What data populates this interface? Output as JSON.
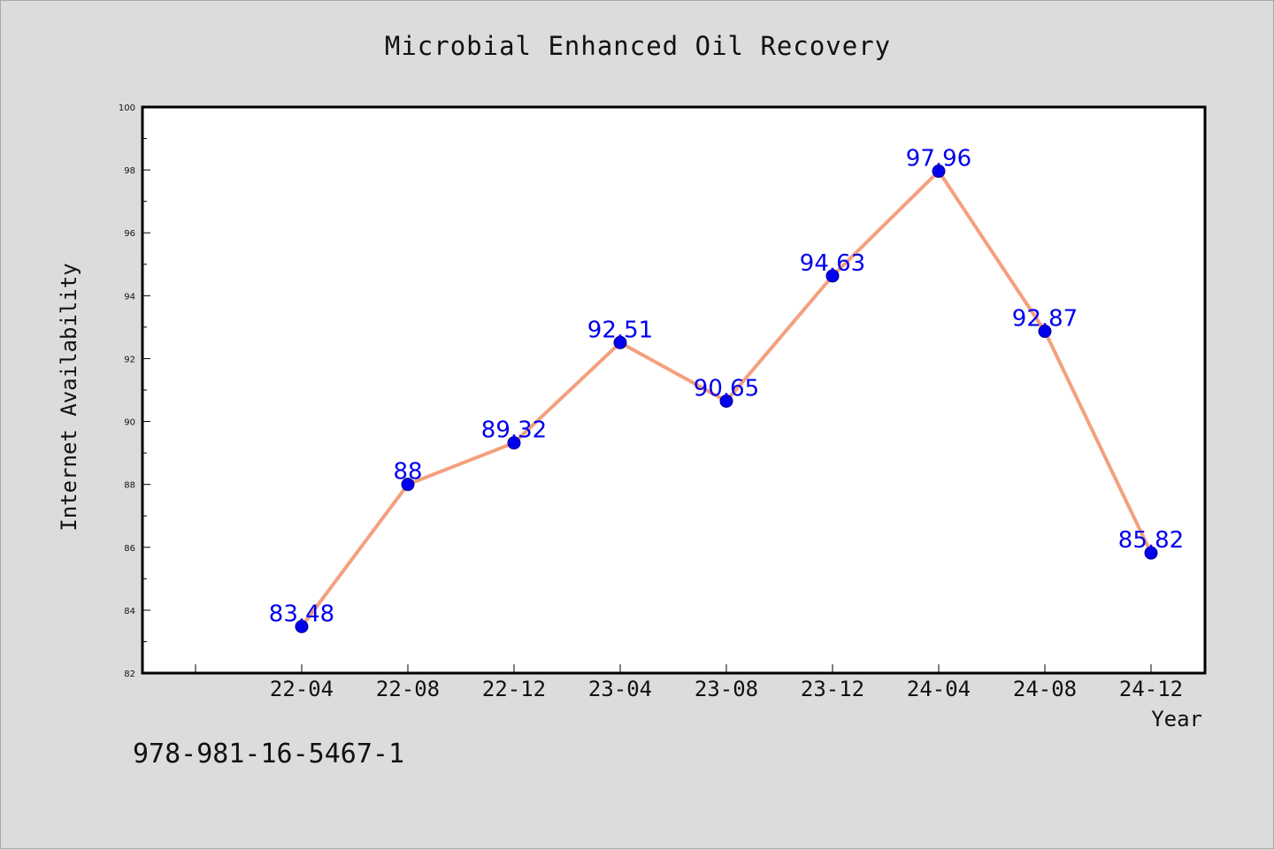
{
  "page": {
    "title": "Microbial Enhanced Oil Recovery",
    "footnote": "978-981-16-5467-1"
  },
  "colors": {
    "background": "#dcdcdc",
    "plot_background": "#ffffff",
    "line": "#f4a07e",
    "marker": "#0000ee",
    "data_label": "#0000ee"
  },
  "chart_data": {
    "type": "line",
    "title": "Microbial Enhanced Oil Recovery",
    "xlabel": "Year",
    "ylabel": "Internet Availability",
    "categories": [
      "22-04",
      "22-08",
      "22-12",
      "23-04",
      "23-08",
      "23-12",
      "24-04",
      "24-08",
      "24-12"
    ],
    "series": [
      {
        "values": [
          83.48,
          88,
          89.32,
          92.51,
          90.65,
          94.63,
          97.96,
          92.87,
          85.82
        ]
      }
    ],
    "data_labels": [
      "83.48",
      "88",
      "89.32",
      "92.51",
      "90.65",
      "94.63",
      "97.96",
      "92.87",
      "85.82"
    ],
    "ylim": [
      82,
      100
    ],
    "yticks": [
      82,
      84,
      86,
      88,
      90,
      92,
      94,
      96,
      98,
      100
    ],
    "grid": false,
    "legend": "none"
  }
}
